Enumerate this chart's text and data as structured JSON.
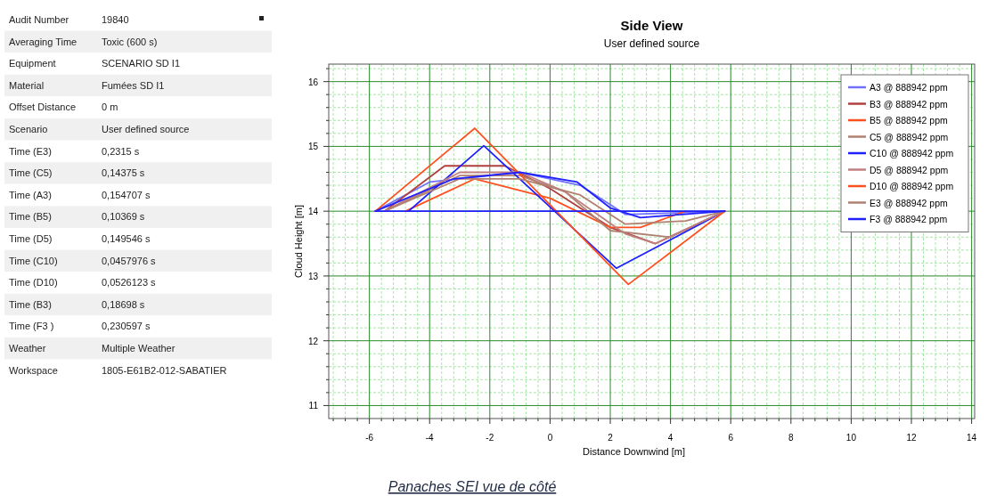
{
  "chart_data": [
    {
      "type": "other",
      "annotations": [
        "Audit Number",
        "19840",
        "Averaging Time",
        "Toxic (600 s)",
        "Equipment",
        "SCENARIO SD I1",
        "Material",
        "Fumées SD I1",
        "Offset Distance",
        "0 m",
        "Scenario",
        "User defined source",
        "Time (E3)",
        "0,2315 s",
        "Time (C5)",
        "0,14375 s",
        "Time (A3)",
        "0,154707 s",
        "Time (B5)",
        "0,10369 s",
        "Time (D5)",
        "0,149546 s",
        "Time (C10)",
        "0,0457976 s",
        "Time (D10)",
        "0,0526123 s",
        "Time (B3)",
        "0,18698 s",
        "Time (F3 )",
        "0,230597 s",
        "Weather",
        "Multiple Weather",
        "Workspace",
        "1805-E61B2-012-SABATIER"
      ]
    },
    {
      "type": "line",
      "title": "Side View",
      "subtitle": "User defined source",
      "xlabel": "Distance Downwind [m]",
      "ylabel": "Cloud Height [m]",
      "xlim": [
        -7.35,
        14.1
      ],
      "ylim": [
        10.8,
        16.27
      ],
      "xticks": [
        {
          "value": -7.2,
          "label": null
        },
        {
          "value": -6.8,
          "label": null
        },
        {
          "value": -6.4,
          "label": null
        },
        -6,
        {
          "value": -5.6,
          "label": null
        },
        {
          "value": -5.2,
          "label": null
        },
        {
          "value": -4.8,
          "label": null
        },
        {
          "value": -4.4,
          "label": null
        },
        -4,
        {
          "value": -3.6,
          "label": null
        },
        {
          "value": -3.2,
          "label": null
        },
        {
          "value": -2.8,
          "label": null
        },
        {
          "value": -2.4,
          "label": null
        },
        -2,
        {
          "value": -1.6,
          "label": null
        },
        {
          "value": -1.2,
          "label": null
        },
        {
          "value": -0.8,
          "label": null
        },
        {
          "value": -0.4,
          "label": null
        },
        0,
        {
          "value": 0.4,
          "label": null
        },
        {
          "value": 0.8,
          "label": null
        },
        {
          "value": 1.2,
          "label": null
        },
        {
          "value": 1.6,
          "label": null
        },
        2,
        {
          "value": 2.4,
          "label": null
        },
        {
          "value": 2.8,
          "label": null
        },
        {
          "value": 3.2,
          "label": null
        },
        {
          "value": 3.6,
          "label": null
        },
        4,
        {
          "value": 4.4,
          "label": null
        },
        {
          "value": 4.8,
          "label": null
        },
        {
          "value": 5.2,
          "label": null
        },
        {
          "value": 5.6,
          "label": null
        },
        6,
        {
          "value": 6.4,
          "label": null
        },
        {
          "value": 6.8,
          "label": null
        },
        {
          "value": 7.2,
          "label": null
        },
        {
          "value": 7.6,
          "label": null
        },
        8,
        {
          "value": 8.4,
          "label": null
        },
        {
          "value": 8.8,
          "label": null
        },
        {
          "value": 9.2,
          "label": null
        },
        {
          "value": 9.6,
          "label": null
        },
        10,
        {
          "value": 10.4,
          "label": null
        },
        {
          "value": 10.8,
          "label": null
        },
        {
          "value": 11.2,
          "label": null
        },
        {
          "value": 11.6,
          "label": null
        },
        12,
        {
          "value": 12.4,
          "label": null
        },
        {
          "value": 12.8,
          "label": null
        },
        {
          "value": 13.2,
          "label": null
        },
        {
          "value": 13.6,
          "label": null
        },
        14
      ],
      "yticks": [
        11,
        {
          "value": 11.2,
          "label": null
        },
        {
          "value": 11.4,
          "label": null
        },
        {
          "value": 11.6,
          "label": null
        },
        {
          "value": 11.8,
          "label": null
        },
        12,
        {
          "value": 12.2,
          "label": null
        },
        {
          "value": 12.4,
          "label": null
        },
        {
          "value": 12.6,
          "label": null
        },
        {
          "value": 12.8,
          "label": null
        },
        13,
        {
          "value": 13.2,
          "label": null
        },
        {
          "value": 13.4,
          "label": null
        },
        {
          "value": 13.6,
          "label": null
        },
        {
          "value": 13.8,
          "label": null
        },
        14,
        {
          "value": 14.2,
          "label": null
        },
        {
          "value": 14.4,
          "label": null
        },
        {
          "value": 14.6,
          "label": null
        },
        {
          "value": 14.8,
          "label": null
        },
        15,
        {
          "value": 15.2,
          "label": null
        },
        {
          "value": 15.4,
          "label": null
        },
        {
          "value": 15.6,
          "label": null
        },
        {
          "value": 15.8,
          "label": null
        },
        16,
        {
          "value": 16.2,
          "label": null
        }
      ],
      "grid": true,
      "legend": "top right",
      "annotations": [
        "Panaches SEI vue de côté"
      ],
      "series": [
        {
          "name": "A3 @ 888942 ppm",
          "color": "#7070ff",
          "x": [
            -5.8,
            -4,
            -1,
            1,
            2.5,
            5.8
          ],
          "values": [
            14,
            14.45,
            14.6,
            14.4,
            13.95,
            14
          ]
        },
        {
          "name": "B3 @ 888942 ppm",
          "color": "#b04040",
          "x": [
            -5.5,
            -3.5,
            -1.5,
            0,
            2,
            3.5,
            5.8
          ],
          "values": [
            14,
            14.7,
            14.7,
            14.35,
            13.75,
            13.5,
            14
          ]
        },
        {
          "name": "B5 @ 888942 ppm",
          "color": "#ff5020",
          "x": [
            -4.8,
            -2.5,
            0,
            2,
            3,
            4.5
          ],
          "values": [
            14,
            14.5,
            14.2,
            13.75,
            13.75,
            14
          ]
        },
        {
          "name": "C5 @ 888942 ppm",
          "color": "#b08070",
          "x": [
            -5.5,
            -3,
            -1,
            0.5,
            2,
            4,
            5.8
          ],
          "values": [
            14,
            14.55,
            14.55,
            14.3,
            13.7,
            13.6,
            14
          ]
        },
        {
          "name": "C10 @ 888942 ppm",
          "color": "#2020ff",
          "x": [
            -4.7,
            -2.2,
            2.2,
            5.8
          ],
          "values": [
            14,
            15.01,
            13.12,
            14
          ]
        },
        {
          "name": "D5 @ 888942 ppm",
          "color": "#c08080",
          "x": [
            -5.5,
            -3,
            -1,
            0.5,
            2.5,
            3.5,
            5.8
          ],
          "values": [
            14,
            14.6,
            14.6,
            14.3,
            13.65,
            13.5,
            14
          ]
        },
        {
          "name": "D10 @ 888942 ppm",
          "color": "#ff5020",
          "x": [
            -5.8,
            -2.5,
            2.6,
            5.8
          ],
          "values": [
            14,
            15.28,
            12.87,
            14
          ]
        },
        {
          "name": "E3 @ 888942 ppm",
          "color": "#b08070",
          "x": [
            -5.5,
            -3,
            -1,
            1,
            2.5,
            4.5,
            5.8
          ],
          "values": [
            14,
            14.5,
            14.5,
            14.25,
            13.8,
            13.85,
            14
          ]
        },
        {
          "name": "F3  @ 888942 ppm",
          "color": "#2020ff",
          "x": [
            -5.8,
            -3.2,
            -1,
            0.9,
            2,
            3,
            5.8
          ],
          "values": [
            14,
            14.5,
            14.6,
            14.45,
            14.05,
            13.9,
            14
          ]
        },
        {
          "color": "#2020ff",
          "x": [
            -5.8,
            5.8
          ],
          "values": [
            14,
            14
          ]
        }
      ]
    }
  ]
}
